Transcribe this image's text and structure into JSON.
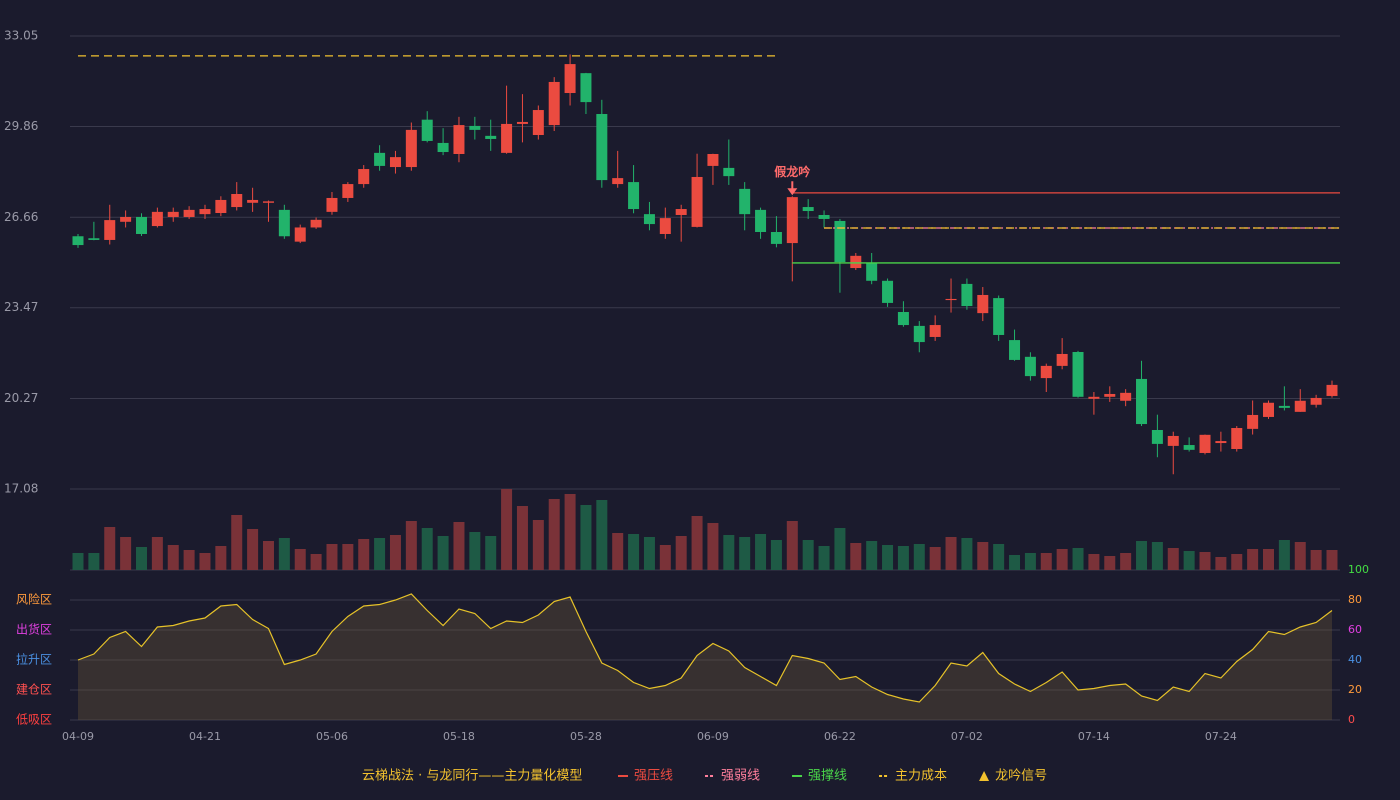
{
  "chart_data": {
    "type": "candlestick",
    "categories": [
      "04-09",
      null,
      null,
      null,
      null,
      null,
      null,
      null,
      "04-21",
      null,
      null,
      null,
      null,
      null,
      null,
      null,
      "05-06",
      null,
      null,
      null,
      null,
      null,
      null,
      null,
      "05-18",
      null,
      null,
      null,
      null,
      null,
      null,
      null,
      "05-28",
      null,
      null,
      null,
      null,
      null,
      null,
      null,
      "06-09",
      null,
      null,
      null,
      null,
      null,
      null,
      null,
      "06-22",
      null,
      null,
      null,
      null,
      null,
      null,
      null,
      "07-02",
      null,
      null,
      null,
      null,
      null,
      null,
      null,
      "07-14",
      null,
      null,
      null,
      null,
      null,
      null,
      null,
      "07-24",
      null,
      null,
      null,
      null,
      null,
      null,
      null
    ],
    "open": [
      25.99,
      25.92,
      25.86,
      26.5,
      26.67,
      26.35,
      26.67,
      26.67,
      26.77,
      26.81,
      27.02,
      27.17,
      27.17,
      26.92,
      25.8,
      26.3,
      26.85,
      27.34,
      27.83,
      28.93,
      28.43,
      28.43,
      30.1,
      29.28,
      28.89,
      29.88,
      29.53,
      28.93,
      29.95,
      29.56,
      29.91,
      31.04,
      31.74,
      30.3,
      27.83,
      27.9,
      26.77,
      26.07,
      26.74,
      26.32,
      28.47,
      28.4,
      27.66,
      26.92,
      26.14,
      25.75,
      27.02,
      26.74,
      26.53,
      24.87,
      25.05,
      24.42,
      23.32,
      22.83,
      22.44,
      23.74,
      24.31,
      23.28,
      23.81,
      22.33,
      21.74,
      20.99,
      21.42,
      21.91,
      20.26,
      20.33,
      20.19,
      20.96,
      19.16,
      18.6,
      18.63,
      18.35,
      18.7,
      18.49,
      19.2,
      19.62,
      20.01,
      19.8,
      20.05,
      20.36
    ],
    "close": [
      25.68,
      25.86,
      26.56,
      26.67,
      26.07,
      26.85,
      26.85,
      26.92,
      26.95,
      27.27,
      27.48,
      27.27,
      27.22,
      25.99,
      26.3,
      26.57,
      27.34,
      27.83,
      28.36,
      28.47,
      28.78,
      29.74,
      29.35,
      28.96,
      29.91,
      29.74,
      29.42,
      29.95,
      30.02,
      30.44,
      31.43,
      32.06,
      30.72,
      27.97,
      28.04,
      26.95,
      26.42,
      26.63,
      26.95,
      28.08,
      28.89,
      28.11,
      26.77,
      26.14,
      25.72,
      27.37,
      26.88,
      26.6,
      25.08,
      25.3,
      24.42,
      23.64,
      22.86,
      22.26,
      22.86,
      23.78,
      23.53,
      23.92,
      22.51,
      21.63,
      21.06,
      21.42,
      21.84,
      20.33,
      20.33,
      20.43,
      20.47,
      19.37,
      18.67,
      18.95,
      18.46,
      18.99,
      18.77,
      19.23,
      19.69,
      20.12,
      19.94,
      20.19,
      20.29,
      20.75
    ],
    "high": [
      26.07,
      26.5,
      27.1,
      26.9,
      26.8,
      27.0,
      27.0,
      27.05,
      27.1,
      27.4,
      27.9,
      27.7,
      27.25,
      27.1,
      26.4,
      26.65,
      27.55,
      27.9,
      28.5,
      29.2,
      29.0,
      30.0,
      30.4,
      29.8,
      30.2,
      30.2,
      30.1,
      31.3,
      31.0,
      30.6,
      31.6,
      32.4,
      31.75,
      30.8,
      29.0,
      28.5,
      27.2,
      27.0,
      27.1,
      28.9,
      28.9,
      29.4,
      27.9,
      27.0,
      26.7,
      27.4,
      27.3,
      26.9,
      26.6,
      25.4,
      25.4,
      24.5,
      23.7,
      23.0,
      23.2,
      24.5,
      24.5,
      24.2,
      23.9,
      22.7,
      21.9,
      21.5,
      22.4,
      21.95,
      20.5,
      20.7,
      20.6,
      21.6,
      19.7,
      19.1,
      18.9,
      19.0,
      19.1,
      19.3,
      20.2,
      20.2,
      20.7,
      20.6,
      20.4,
      20.9
    ],
    "low": [
      25.58,
      25.85,
      25.7,
      26.3,
      26.0,
      26.3,
      26.5,
      26.6,
      26.6,
      26.7,
      26.9,
      26.85,
      26.5,
      25.9,
      25.75,
      26.25,
      26.75,
      27.2,
      27.7,
      28.3,
      28.2,
      28.3,
      29.3,
      28.85,
      28.6,
      29.4,
      29.0,
      28.9,
      29.3,
      29.4,
      29.7,
      30.6,
      30.3,
      27.7,
      27.7,
      26.8,
      26.2,
      25.9,
      25.8,
      26.3,
      27.8,
      27.8,
      26.2,
      25.9,
      25.6,
      24.4,
      26.6,
      26.3,
      24.0,
      24.8,
      24.3,
      23.5,
      22.8,
      21.9,
      22.3,
      23.3,
      23.4,
      23.0,
      22.3,
      21.6,
      20.9,
      20.5,
      21.3,
      20.3,
      19.7,
      20.15,
      20.0,
      19.3,
      18.2,
      17.6,
      18.4,
      18.3,
      18.4,
      18.4,
      19.0,
      19.55,
      19.85,
      19.8,
      19.95,
      20.3
    ],
    "ylim": [
      17.08,
      33.05
    ],
    "yticks": [
      17.08,
      20.27,
      23.47,
      26.66,
      29.86,
      33.05
    ],
    "up_color": "#eb4b40",
    "down_color": "#22b36b",
    "grid": true,
    "volume": {
      "values": [
        17,
        17,
        43,
        33,
        23,
        33,
        25,
        20,
        17,
        24,
        55,
        41,
        29,
        32,
        21,
        16,
        26,
        26,
        31,
        32,
        35,
        49,
        42,
        34,
        48,
        38,
        34,
        81,
        64,
        50,
        71,
        76,
        65,
        70,
        37,
        36,
        33,
        25,
        34,
        54,
        47,
        35,
        33,
        36,
        30,
        49,
        30,
        24,
        42,
        27,
        29,
        25,
        24,
        26,
        23,
        33,
        32,
        28,
        26,
        15,
        17,
        17,
        21,
        22,
        16,
        14,
        17,
        29,
        28,
        22,
        19,
        18,
        13,
        16,
        21,
        21,
        30,
        28,
        20,
        20
      ],
      "up_color": "#7a3238",
      "down_color": "#1e5a45"
    },
    "levels": [
      {
        "name": "强压线",
        "color": "#eb4b40",
        "style": "solid",
        "segments": [
          {
            "value": 27.52,
            "start": 45,
            "end": 79
          }
        ]
      },
      {
        "name": "强弱线",
        "color": "#ff7f9c",
        "style": "dashdot",
        "segments": [
          {
            "value": 26.28,
            "start": 47,
            "end": 79
          }
        ]
      },
      {
        "name": "强撑线",
        "color": "#4ad44a",
        "style": "solid",
        "segments": [
          {
            "value": 25.05,
            "start": 45,
            "end": 79
          }
        ]
      },
      {
        "name": "主力成本",
        "color": "#f2c12e",
        "style": "dash",
        "segments": [
          {
            "value": 32.35,
            "start": 0,
            "end": 44
          },
          {
            "value": 26.28,
            "start": 47,
            "end": 79
          }
        ]
      }
    ],
    "signal": {
      "name": "龙吟信号",
      "color": "#f2c12e"
    },
    "annotation": {
      "text": "假龙吟",
      "index": 45,
      "color": "#ff6b6b"
    },
    "oscillator": {
      "values": [
        40,
        44,
        55,
        59,
        49,
        62,
        63,
        66,
        68,
        76,
        77,
        67,
        61,
        37,
        40,
        44,
        59,
        69,
        76,
        77,
        80,
        84,
        73,
        63,
        74,
        71,
        61,
        66,
        65,
        70,
        79,
        82,
        59,
        38,
        33,
        25,
        21,
        23,
        28,
        43,
        51,
        46,
        35,
        29,
        23,
        43,
        41,
        38,
        27,
        29,
        22,
        17,
        14,
        12,
        23,
        38,
        36,
        45,
        31,
        24,
        19,
        25,
        32,
        20,
        21,
        23,
        24,
        16,
        13,
        22,
        19,
        31,
        28,
        39,
        47,
        59,
        57,
        62,
        65,
        73
      ],
      "color": "#e6c229",
      "ylim": [
        0,
        100
      ],
      "yticks": [
        0,
        20,
        40,
        60,
        80,
        100
      ],
      "tick_colors": [
        "#ff4d4d",
        "#ff9a3c",
        "#4a90e2",
        "#e040e0",
        "#ff9a3c",
        "#44dd44"
      ],
      "zones": [
        {
          "label": "风险区",
          "value": 80,
          "color": "#ff9a3c"
        },
        {
          "label": "出货区",
          "value": 60,
          "color": "#e040e0"
        },
        {
          "label": "拉升区",
          "value": 40,
          "color": "#4a90e2"
        },
        {
          "label": "建仓区",
          "value": 20,
          "color": "#ff5050"
        },
        {
          "label": "低吸区",
          "value": 0,
          "color": "#ff4040"
        }
      ]
    },
    "legend_title": "云梯战法 · 与龙同行——主力量化模型"
  }
}
